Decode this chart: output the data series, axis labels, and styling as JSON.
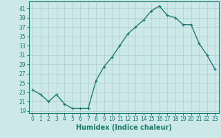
{
  "x": [
    0,
    1,
    2,
    3,
    4,
    5,
    6,
    7,
    8,
    9,
    10,
    11,
    12,
    13,
    14,
    15,
    16,
    17,
    18,
    19,
    20,
    21,
    22,
    23
  ],
  "y": [
    23.5,
    22.5,
    21.0,
    22.5,
    20.5,
    19.5,
    19.5,
    19.5,
    25.5,
    28.5,
    30.5,
    33.0,
    35.5,
    37.0,
    38.5,
    40.5,
    41.5,
    39.5,
    39.0,
    37.5,
    37.5,
    33.5,
    31.0,
    28.0
  ],
  "line_color": "#1a7a6e",
  "marker": "+",
  "bg_color": "#cce8e8",
  "grid_color": "#aacece",
  "xlabel": "Humidex (Indice chaleur)",
  "ylabel": "",
  "xlim": [
    -0.5,
    23.5
  ],
  "ylim": [
    18.5,
    42.5
  ],
  "yticks": [
    19,
    21,
    23,
    25,
    27,
    29,
    31,
    33,
    35,
    37,
    39,
    41
  ],
  "xticks": [
    0,
    1,
    2,
    3,
    4,
    5,
    6,
    7,
    8,
    9,
    10,
    11,
    12,
    13,
    14,
    15,
    16,
    17,
    18,
    19,
    20,
    21,
    22,
    23
  ],
  "tick_fontsize": 5.5,
  "xlabel_fontsize": 7.0,
  "linewidth": 1.0,
  "markersize": 3.5
}
